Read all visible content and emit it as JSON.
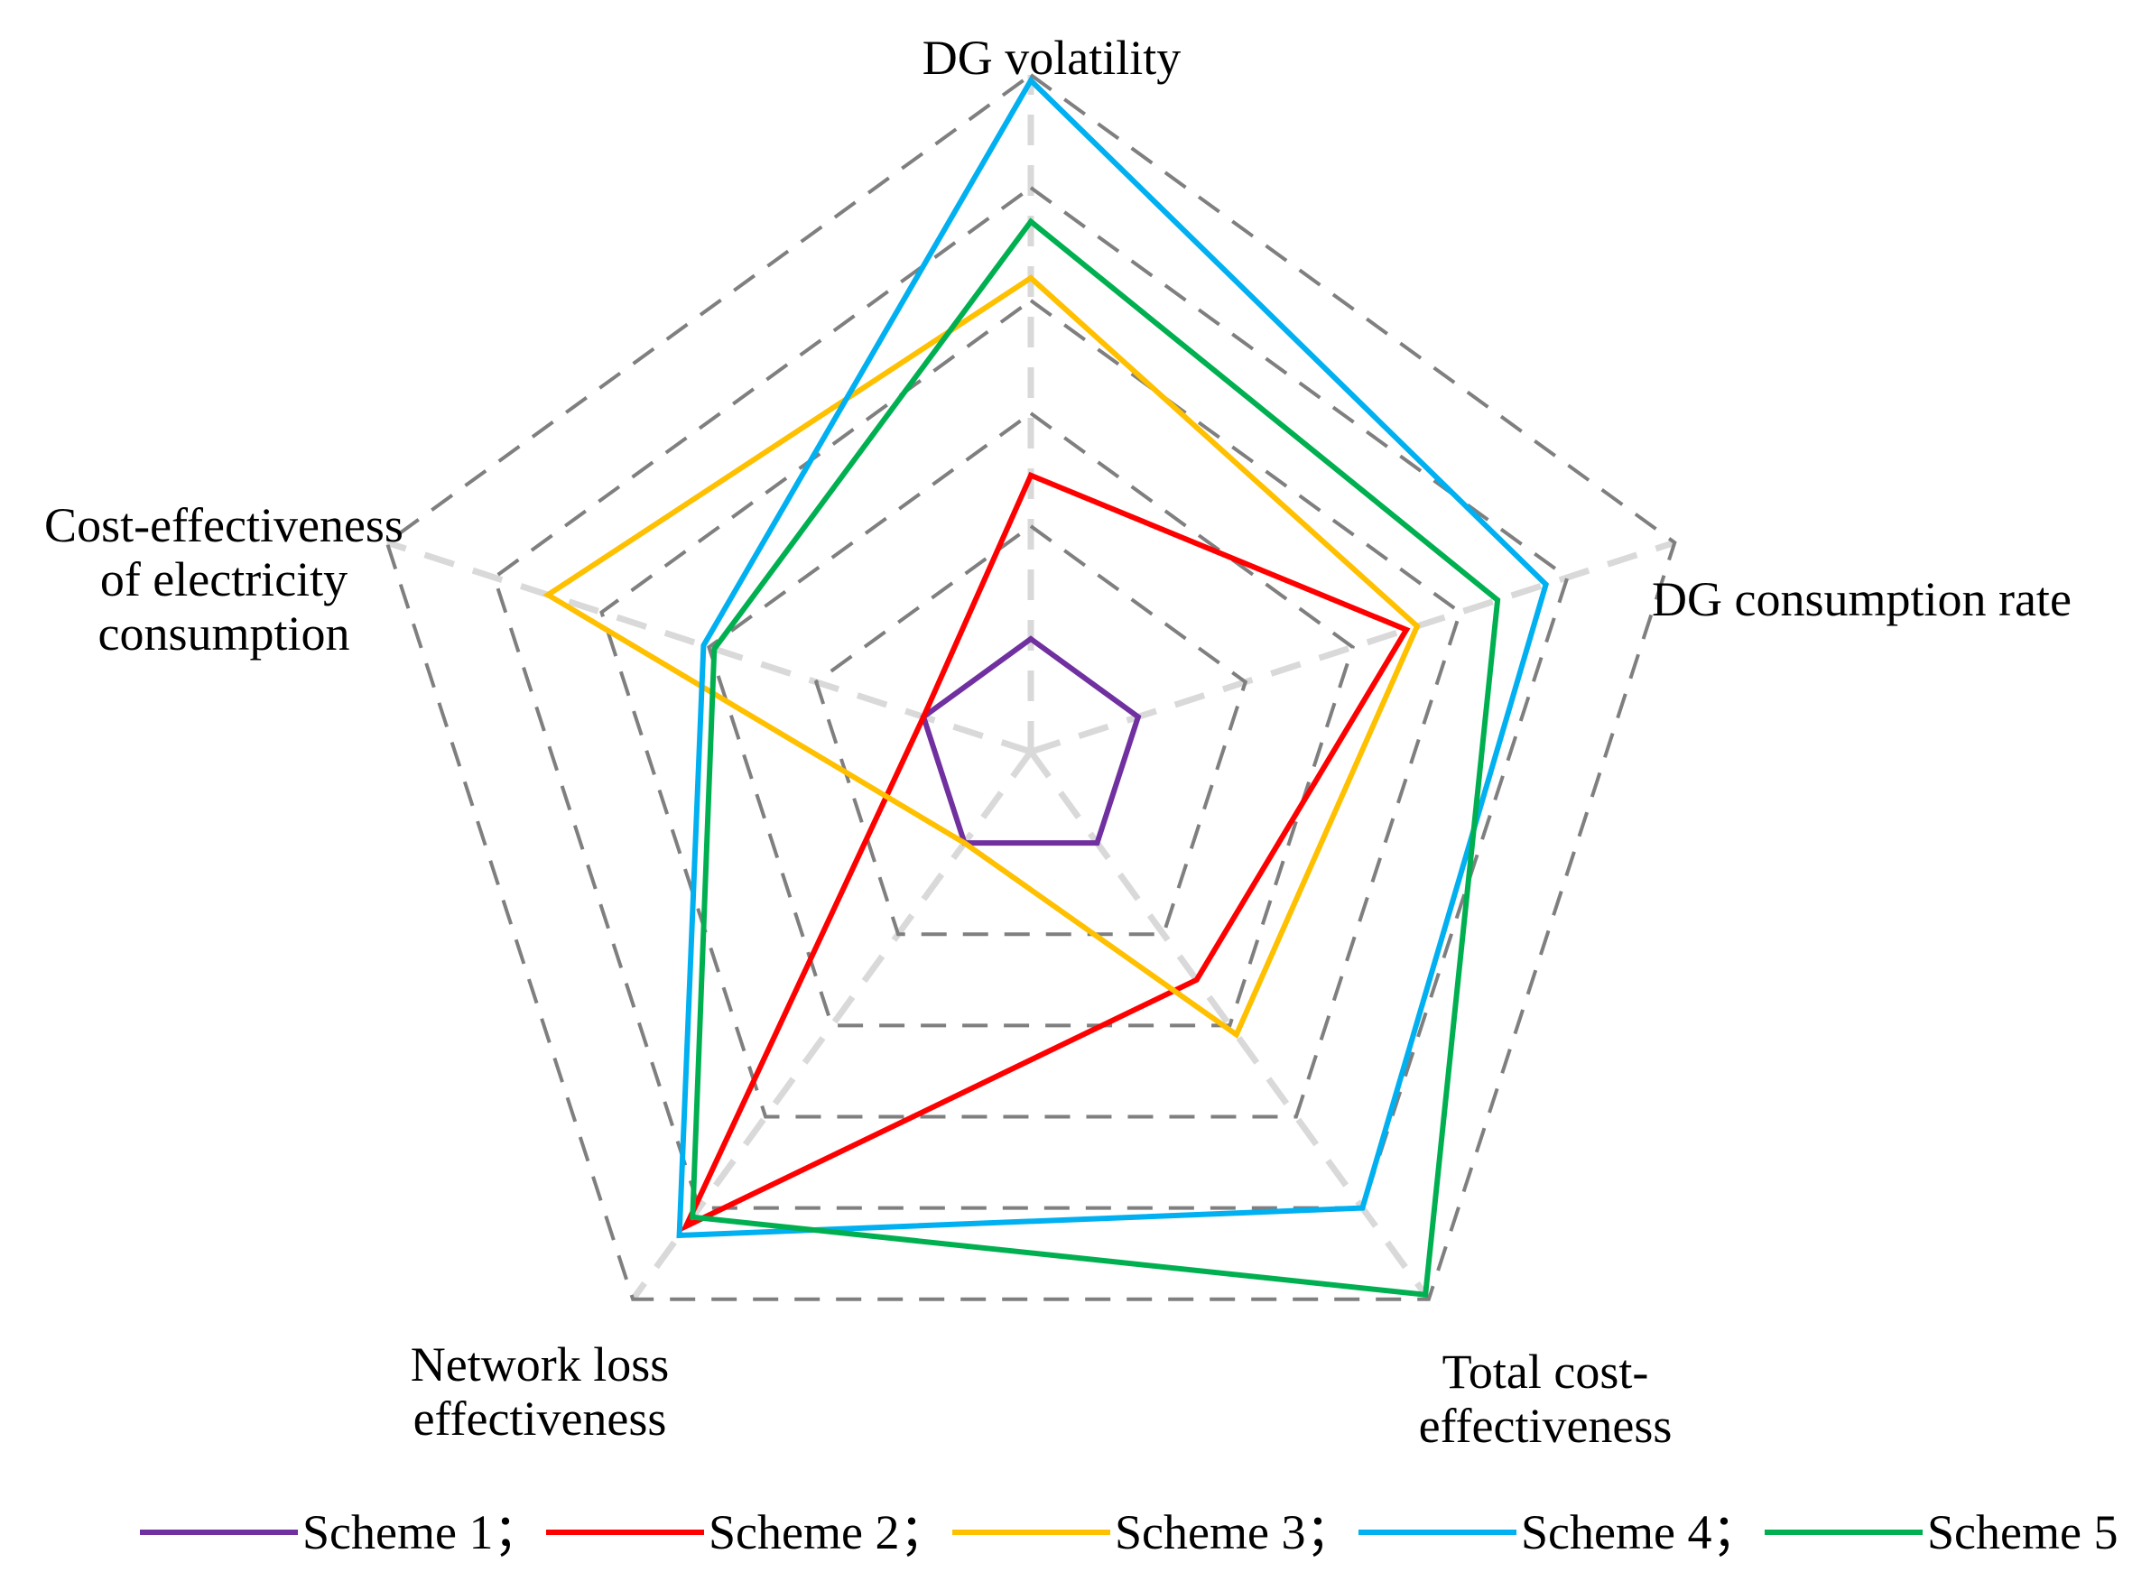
{
  "chart_data": {
    "type": "radar",
    "title": "",
    "axes": [
      {
        "name": "DG volatility",
        "lines": [
          "DG volatility"
        ]
      },
      {
        "name": "DG consumption rate",
        "lines": [
          "DG consumption rate"
        ]
      },
      {
        "name": "Total cost-effectiveness",
        "lines": [
          "Total cost-",
          "effectiveness"
        ]
      },
      {
        "name": "Network loss effectiveness",
        "lines": [
          "Network loss",
          "effectiveness"
        ]
      },
      {
        "name": "Cost-effectiveness of electricity consumption",
        "lines": [
          "Cost-effectiveness",
          "of electricity",
          "consumption"
        ]
      }
    ],
    "range": [
      0,
      6
    ],
    "ring_levels": [
      1,
      2,
      3,
      4,
      5,
      6
    ],
    "series": [
      {
        "name": "Scheme 1",
        "legend_label": "Scheme 1；",
        "color": "#7030A0",
        "values": [
          1.0,
          1.0,
          1.0,
          1.0,
          1.0
        ]
      },
      {
        "name": "Scheme 2",
        "legend_label": "Scheme 2；",
        "color": "#FF0000",
        "values": [
          2.45,
          3.5,
          2.5,
          5.2,
          1.0
        ]
      },
      {
        "name": "Scheme 3",
        "legend_label": "Scheme 3；",
        "color": "#FFC000",
        "values": [
          4.2,
          3.6,
          3.1,
          1.0,
          4.5
        ]
      },
      {
        "name": "Scheme 4",
        "legend_label": "Scheme 4；",
        "color": "#00B0F0",
        "values": [
          5.95,
          4.8,
          5.0,
          5.3,
          3.05
        ]
      },
      {
        "name": "Scheme 5",
        "legend_label": "Scheme 5",
        "color": "#00B050",
        "values": [
          4.7,
          4.35,
          5.95,
          5.1,
          2.95
        ]
      }
    ],
    "legend_position": "bottom"
  }
}
